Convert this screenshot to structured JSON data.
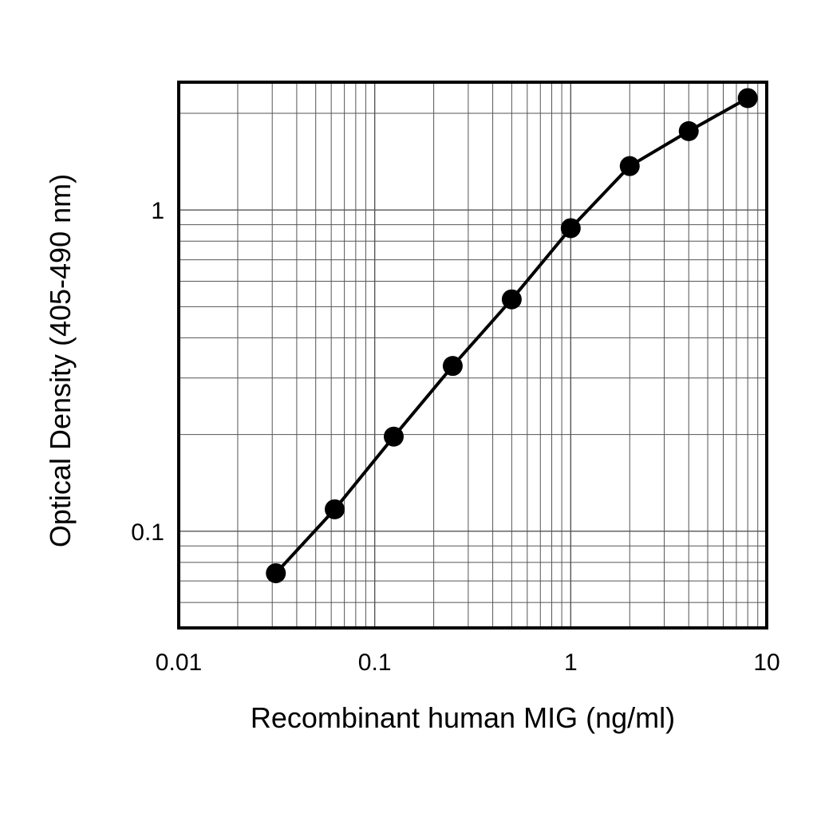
{
  "chart_data": {
    "type": "line",
    "title": "",
    "xlabel": "Recombinant human MIG (ng/ml)",
    "ylabel": "Optical Density (405-490 nm)",
    "x_scale": "log",
    "y_scale": "log",
    "xlim": [
      0.01,
      10
    ],
    "ylim": [
      0.05,
      2.5
    ],
    "x_ticks": [
      0.01,
      0.1,
      1,
      10
    ],
    "x_tick_labels": [
      "0.01",
      "0.1",
      "1",
      "10"
    ],
    "y_ticks": [
      0.1,
      1
    ],
    "y_tick_labels": [
      "0.1",
      "1"
    ],
    "grid": true,
    "legend": "none",
    "colors": {
      "line": "#000000",
      "markers": "#000000",
      "grid": "#555555",
      "frame": "#000000"
    },
    "series": [
      {
        "x": [
          0.0313,
          0.0625,
          0.125,
          0.25,
          0.5,
          1,
          2,
          4,
          8
        ],
        "y": [
          0.074,
          0.117,
          0.197,
          0.327,
          0.527,
          0.878,
          1.37,
          1.76,
          2.23
        ]
      }
    ]
  }
}
